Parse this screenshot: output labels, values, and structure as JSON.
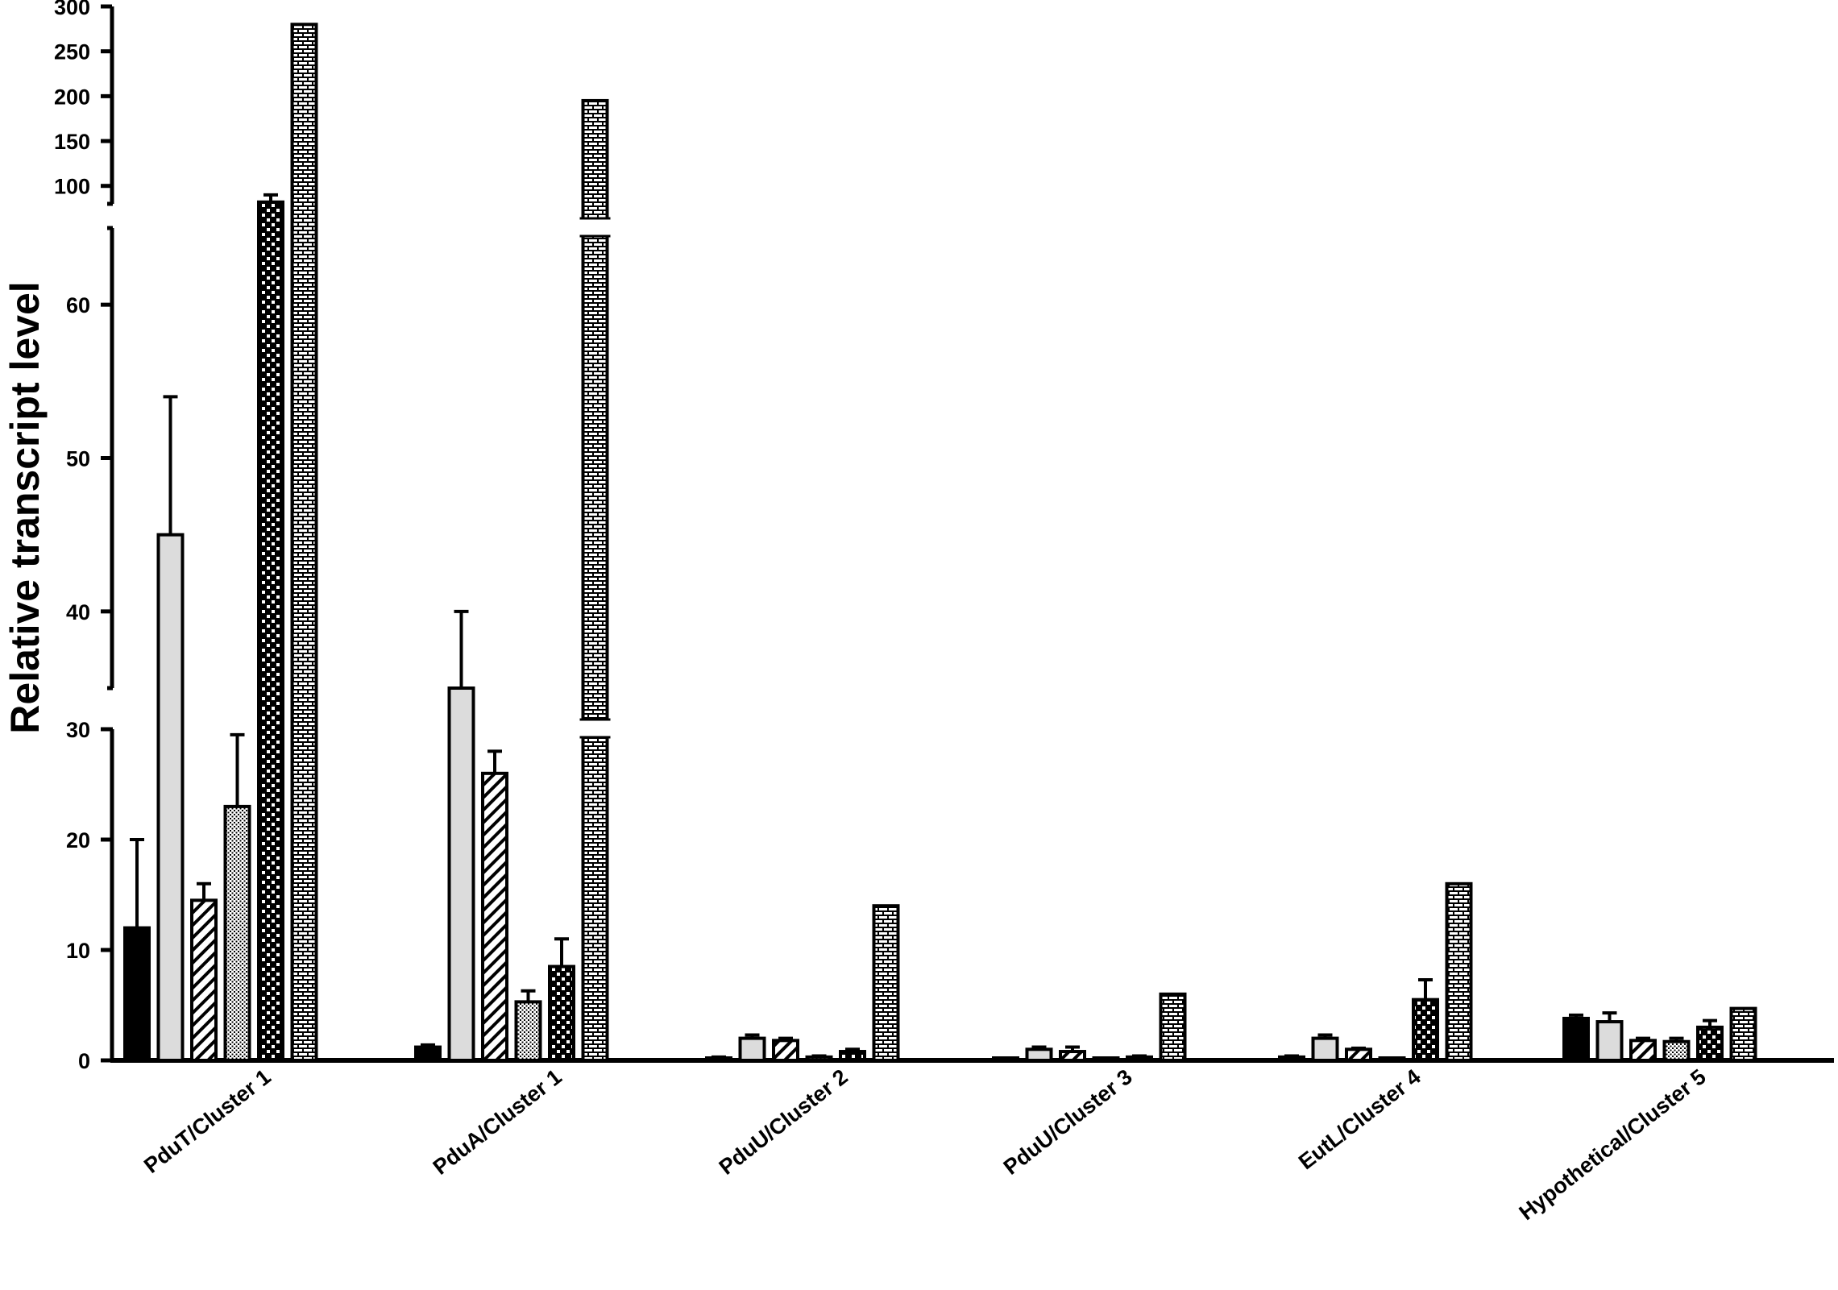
{
  "chart_data": {
    "type": "bar",
    "ylabel": "Relative transcript level",
    "xlabel": "",
    "title": "",
    "y_axis_broken": true,
    "y_segments": [
      {
        "range": [
          0,
          30
        ],
        "ticks": [
          0,
          10,
          20,
          30
        ]
      },
      {
        "range": [
          35,
          65
        ],
        "ticks": [
          40,
          50,
          60
        ]
      },
      {
        "range": [
          80,
          300
        ],
        "ticks": [
          100,
          150,
          200,
          250,
          300
        ]
      }
    ],
    "categories": [
      "PduT/Cluster 1",
      "PduA/Cluster 1",
      "PduU/Cluster 2",
      "PduU/Cluster 3",
      "EutL/Cluster 4",
      "Hypothetical/Cluster 5"
    ],
    "series": [
      {
        "pattern": "solid-black",
        "values": [
          12,
          1.2,
          0.2,
          0.1,
          0.3,
          3.8
        ],
        "errors": [
          8,
          0.2,
          0.1,
          0.05,
          0.1,
          0.3
        ]
      },
      {
        "pattern": "light-gray",
        "values": [
          45,
          35,
          2,
          1,
          2,
          3.5
        ],
        "errors": [
          9,
          5,
          0.3,
          0.2,
          0.3,
          0.8
        ]
      },
      {
        "pattern": "diagonal-hatch",
        "values": [
          14.5,
          26,
          1.8,
          0.8,
          1,
          1.8
        ],
        "errors": [
          1.5,
          2,
          0.2,
          0.4,
          0.1,
          0.2
        ]
      },
      {
        "pattern": "fine-crosshatch",
        "values": [
          23,
          5.3,
          0.3,
          0.1,
          0.1,
          1.7
        ],
        "errors": [
          6.5,
          1,
          0.1,
          0.05,
          0.05,
          0.3
        ]
      },
      {
        "pattern": "dotted-checker",
        "values": [
          82,
          8.5,
          0.8,
          0.3,
          5.5,
          3
        ],
        "errors": [
          8,
          2.5,
          0.2,
          0.1,
          1.8,
          0.6
        ]
      },
      {
        "pattern": "brick",
        "values": [
          280,
          195,
          14,
          6,
          16,
          4.7
        ],
        "errors": [
          0,
          0,
          0,
          0,
          0,
          0
        ]
      }
    ]
  }
}
